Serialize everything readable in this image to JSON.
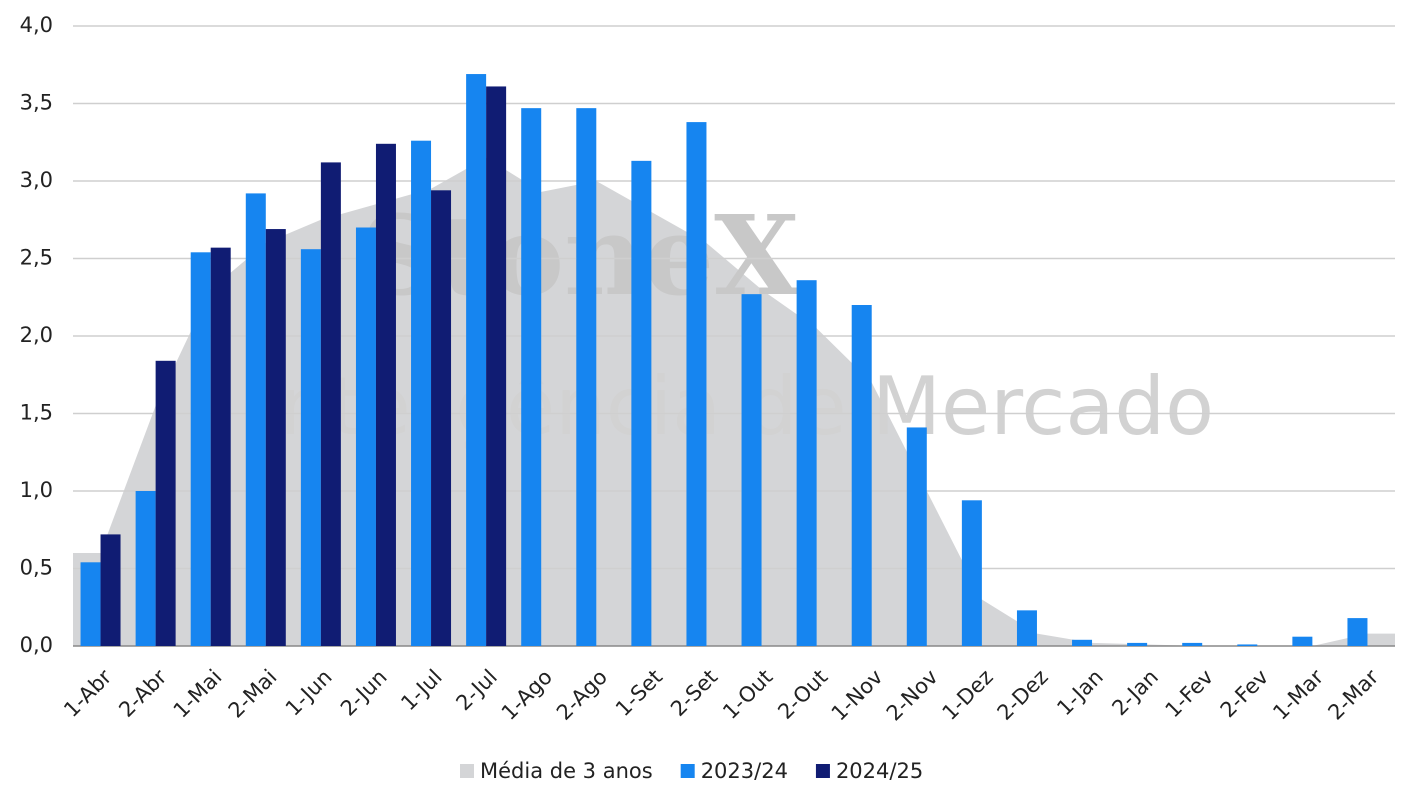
{
  "chart_data": {
    "type": "bar",
    "watermark": [
      "StoneX",
      "Inteligência de Mercado"
    ],
    "categories": [
      "1-Abr",
      "2-Abr",
      "1-Mai",
      "2-Mai",
      "1-Jun",
      "2-Jun",
      "1-Jul",
      "2-Jul",
      "1-Ago",
      "2-Ago",
      "1-Set",
      "2-Set",
      "1-Out",
      "2-Out",
      "1-Nov",
      "2-Nov",
      "1-Dez",
      "2-Dez",
      "1-Jan",
      "2-Jan",
      "1-Fev",
      "2-Fev",
      "1-Mar",
      "2-Mar"
    ],
    "series": [
      {
        "name": "Média de 3 anos",
        "type": "area",
        "color": "#d4d5d7",
        "values": [
          0.6,
          1.55,
          2.3,
          2.6,
          2.75,
          2.85,
          2.95,
          3.15,
          2.93,
          3.0,
          2.8,
          2.6,
          2.3,
          2.05,
          1.7,
          1.0,
          0.3,
          0.08,
          0.02,
          0.01,
          0.0,
          0.0,
          0.0,
          0.08
        ]
      },
      {
        "name": "2023/24",
        "color": "#1685f0",
        "values": [
          0.54,
          1.0,
          2.54,
          2.92,
          2.56,
          2.7,
          3.26,
          3.69,
          3.47,
          3.47,
          3.13,
          3.38,
          2.27,
          2.36,
          2.2,
          1.41,
          0.94,
          0.23,
          0.04,
          0.02,
          0.02,
          0.01,
          0.06,
          0.18
        ]
      },
      {
        "name": "2024/25",
        "color": "#101c73",
        "values": [
          0.72,
          1.84,
          2.57,
          2.69,
          3.12,
          3.24,
          2.94,
          3.61,
          null,
          null,
          null,
          null,
          null,
          null,
          null,
          null,
          null,
          null,
          null,
          null,
          null,
          null,
          null,
          null
        ]
      }
    ],
    "ylim": [
      0,
      4
    ],
    "yticks": [
      {
        "value": 0,
        "label": "0,0"
      },
      {
        "value": 0.5,
        "label": "0,5"
      },
      {
        "value": 1,
        "label": "1,0"
      },
      {
        "value": 1.5,
        "label": "1,5"
      },
      {
        "value": 2,
        "label": "2,0"
      },
      {
        "value": 2.5,
        "label": "2,5"
      },
      {
        "value": 3,
        "label": "3,0"
      },
      {
        "value": 3.5,
        "label": "3,5"
      },
      {
        "value": 4,
        "label": "4,0"
      }
    ],
    "grid": true,
    "legend": "bottom"
  }
}
